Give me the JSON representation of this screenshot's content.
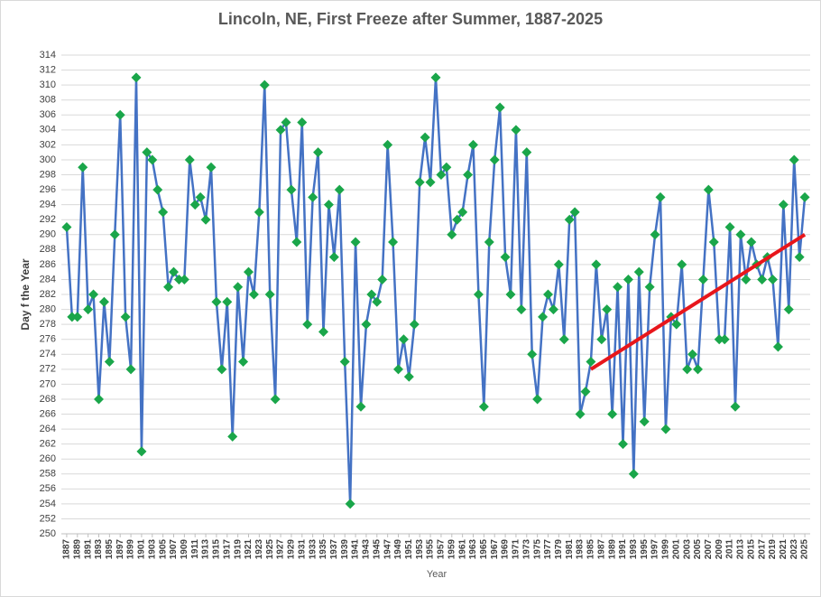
{
  "chart_data": {
    "type": "line",
    "title": "Lincoln,  NE, First Freeze after Summer, 1887-2025",
    "xlabel": "Year",
    "ylabel": "Day f the Year",
    "x": [
      1887,
      1888,
      1889,
      1890,
      1891,
      1892,
      1893,
      1894,
      1895,
      1896,
      1897,
      1898,
      1899,
      1900,
      1901,
      1902,
      1903,
      1904,
      1905,
      1906,
      1907,
      1908,
      1909,
      1910,
      1911,
      1912,
      1913,
      1914,
      1915,
      1916,
      1917,
      1918,
      1919,
      1920,
      1921,
      1922,
      1923,
      1924,
      1925,
      1926,
      1927,
      1928,
      1929,
      1930,
      1931,
      1932,
      1933,
      1934,
      1935,
      1936,
      1937,
      1938,
      1939,
      1940,
      1941,
      1942,
      1943,
      1944,
      1945,
      1946,
      1947,
      1948,
      1949,
      1950,
      1951,
      1952,
      1953,
      1954,
      1955,
      1956,
      1957,
      1958,
      1959,
      1960,
      1961,
      1962,
      1963,
      1964,
      1965,
      1966,
      1967,
      1968,
      1969,
      1970,
      1971,
      1972,
      1973,
      1974,
      1975,
      1976,
      1977,
      1978,
      1979,
      1980,
      1981,
      1982,
      1983,
      1984,
      1985,
      1986,
      1987,
      1988,
      1989,
      1990,
      1991,
      1992,
      1993,
      1994,
      1995,
      1996,
      1997,
      1998,
      1999,
      2000,
      2001,
      2002,
      2003,
      2004,
      2005,
      2006,
      2007,
      2008,
      2009,
      2010,
      2011,
      2012,
      2013,
      2014,
      2015,
      2016,
      2017,
      2018,
      2019,
      2020,
      2021,
      2022,
      2023,
      2024,
      2025
    ],
    "series": [
      {
        "color": "#4472c4",
        "marker_color": "#1aa64a",
        "values": [
          291,
          279,
          279,
          299,
          280,
          282,
          268,
          281,
          273,
          290,
          306,
          279,
          272,
          311,
          261,
          301,
          300,
          296,
          293,
          283,
          285,
          284,
          284,
          300,
          294,
          295,
          292,
          299,
          281,
          272,
          281,
          263,
          283,
          273,
          285,
          282,
          293,
          310,
          282,
          268,
          304,
          305,
          296,
          289,
          305,
          278,
          295,
          301,
          277,
          294,
          287,
          296,
          273,
          254,
          289,
          267,
          278,
          282,
          281,
          284,
          302,
          289,
          272,
          276,
          271,
          278,
          297,
          303,
          297,
          311,
          298,
          299,
          290,
          292,
          293,
          298,
          302,
          282,
          267,
          289,
          300,
          307,
          287,
          282,
          304,
          280,
          301,
          274,
          268,
          279,
          282,
          280,
          286,
          276,
          292,
          293,
          266,
          269,
          273,
          286,
          276,
          280,
          266,
          283,
          262,
          284,
          258,
          285,
          265,
          283,
          290,
          295,
          264,
          279,
          278,
          286,
          272,
          274,
          272,
          284,
          296,
          289,
          276,
          276,
          291,
          267,
          290,
          284,
          289,
          286,
          284,
          287,
          284,
          275,
          294,
          280,
          300,
          287,
          295
        ]
      }
    ],
    "trendline": {
      "x": [
        1985,
        2025
      ],
      "values": [
        272,
        290
      ],
      "color": "#e8161b"
    },
    "xlim": [
      1886,
      2026
    ],
    "ylim": [
      250,
      314
    ],
    "xticks": [
      1887,
      1889,
      1891,
      1893,
      1895,
      1897,
      1899,
      1901,
      1903,
      1905,
      1907,
      1909,
      1911,
      1913,
      1915,
      1917,
      1919,
      1921,
      1923,
      1925,
      1927,
      1929,
      1931,
      1933,
      1935,
      1937,
      1939,
      1941,
      1943,
      1945,
      1947,
      1949,
      1951,
      1953,
      1955,
      1957,
      1959,
      1961,
      1963,
      1965,
      1967,
      1969,
      1971,
      1973,
      1975,
      1977,
      1979,
      1981,
      1983,
      1985,
      1987,
      1989,
      1991,
      1993,
      1995,
      1997,
      1999,
      2001,
      2003,
      2005,
      2007,
      2009,
      2011,
      2013,
      2015,
      2017,
      2019,
      2021,
      2023,
      2025
    ],
    "yticks": [
      250,
      252,
      254,
      256,
      258,
      260,
      262,
      264,
      266,
      268,
      270,
      272,
      274,
      276,
      278,
      280,
      282,
      284,
      286,
      288,
      290,
      292,
      294,
      296,
      298,
      300,
      302,
      304,
      306,
      308,
      310,
      312,
      314
    ],
    "grid": true
  }
}
